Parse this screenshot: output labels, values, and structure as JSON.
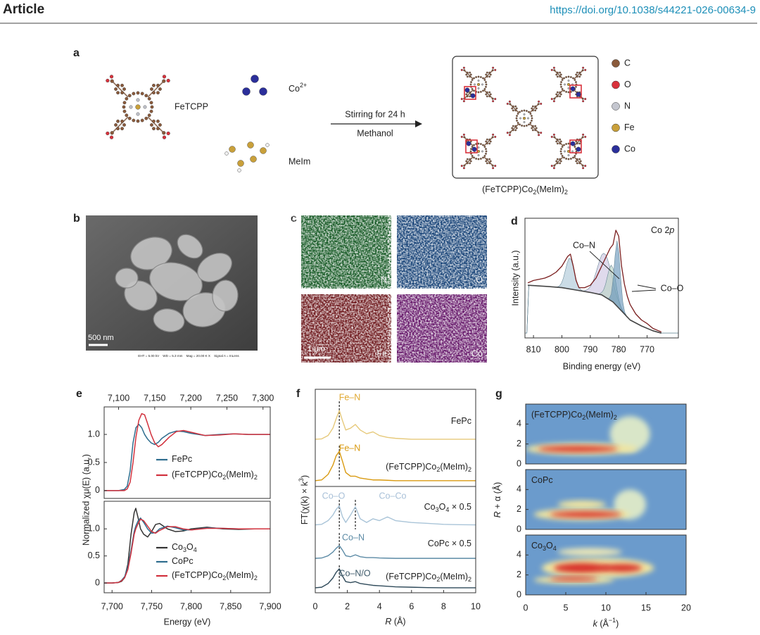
{
  "header": {
    "journal": "Article",
    "doi": "https://doi.org/10.1038/s44221-026-00634-9"
  },
  "panel_a": {
    "label": "a",
    "ligand": "FeTCPP",
    "metal": "Co2+",
    "linker": "MeIm",
    "step": "Stirring for 24 h",
    "solvent": "Methanol",
    "product": "(FeTCPP)Co2(MeIm)2",
    "legend": [
      {
        "label": "C",
        "color": "#8a5a3b"
      },
      {
        "label": "O",
        "color": "#d8323c"
      },
      {
        "label": "N",
        "color": "#c4c6cf"
      },
      {
        "label": "Fe",
        "color": "#c9a03a"
      },
      {
        "label": "Co",
        "color": "#2b2f9a"
      }
    ]
  },
  "panel_b": {
    "label": "b",
    "scale_bar": "500 nm",
    "footer": "EHT = 5.00 kV    WD = 5.3 mm    Mag = 20.00 K X    Signal A = InLens"
  },
  "panel_c": {
    "label": "c",
    "maps": [
      {
        "element": "N",
        "color": "#1f9a3a"
      },
      {
        "element": "O",
        "color": "#1f6fd0"
      },
      {
        "element": "Fe",
        "color": "#c0222a"
      },
      {
        "element": "Co",
        "color": "#b020b8"
      }
    ],
    "scale_bar": "1 µm"
  },
  "chart_data": [
    {
      "type": "line",
      "panel": "d",
      "annotation": "Co 2p",
      "labels": [
        "Co–N",
        "Co–O"
      ],
      "xlabel": "Binding energy (eV)",
      "ylabel": "Intensity (a.u.)",
      "xlim": [
        813,
        759
      ],
      "xticks": [
        810,
        800,
        790,
        780,
        770
      ],
      "ylim": [
        0,
        1
      ],
      "series": [
        {
          "color": "#7a1e1e",
          "x": [
            812,
            810,
            808,
            806,
            804,
            802,
            800,
            798,
            797,
            796,
            795,
            794,
            792,
            790,
            788,
            786,
            785,
            784,
            783,
            782,
            781,
            780,
            779,
            778,
            777,
            776,
            774,
            772,
            770,
            768,
            766,
            765
          ],
          "values": [
            0.46,
            0.48,
            0.49,
            0.5,
            0.52,
            0.55,
            0.6,
            0.68,
            0.7,
            0.6,
            0.48,
            0.42,
            0.42,
            0.44,
            0.5,
            0.6,
            0.65,
            0.7,
            0.75,
            0.78,
            0.9,
            0.85,
            0.6,
            0.45,
            0.35,
            0.28,
            0.2,
            0.15,
            0.12,
            0.08,
            0.06,
            0.05
          ]
        },
        {
          "color": "#444444",
          "x": [
            812,
            805,
            800,
            795,
            790,
            786,
            782,
            780,
            778,
            776,
            772,
            768,
            765
          ],
          "values": [
            0.44,
            0.43,
            0.42,
            0.4,
            0.38,
            0.36,
            0.3,
            0.25,
            0.2,
            0.15,
            0.1,
            0.06,
            0.04
          ]
        }
      ],
      "peaks": [
        {
          "center": 797.2,
          "height": 0.26,
          "width": 1.5,
          "color": "#a8c5d6"
        },
        {
          "center": 785,
          "height": 0.36,
          "width": 2.5,
          "color": "#c9c2e0"
        },
        {
          "center": 782.5,
          "height": 0.3,
          "width": 1.5,
          "color": "#b9d4c4"
        },
        {
          "center": 780.5,
          "height": 0.55,
          "width": 1,
          "color": "#5f8fb5"
        }
      ]
    },
    {
      "type": "line",
      "panel": "e",
      "xaxis": "top",
      "ylabel": "Normalized χμ(E) (a.u.)",
      "xlim": [
        7080,
        7310
      ],
      "xticks": [
        {
          "value": 7100,
          "label": "7,100"
        },
        {
          "value": 7150,
          "label": "7,150"
        },
        {
          "value": 7200,
          "label": "7,200"
        },
        {
          "value": 7250,
          "label": "7,250"
        },
        {
          "value": 7300,
          "label": "7,300"
        }
      ],
      "ylim": [
        -0.14,
        1.49
      ],
      "yticks": [
        0,
        0.5,
        {
          "value": 1,
          "label": "1.0"
        }
      ],
      "x": [
        7080,
        7100,
        7108,
        7112,
        7116,
        7120,
        7124,
        7128,
        7132,
        7136,
        7140,
        7145,
        7150,
        7155,
        7160,
        7170,
        7180,
        7190,
        7200,
        7220,
        7240,
        7260,
        7280,
        7310
      ],
      "series": [
        {
          "name": "FePc",
          "color": "#2e6d8e",
          "values": [
            0,
            0,
            0.02,
            0.08,
            0.35,
            0.85,
            1.12,
            1.18,
            1.12,
            1.0,
            0.92,
            0.85,
            0.82,
            0.86,
            0.93,
            1.02,
            1.06,
            1.05,
            1.02,
            0.98,
            1.0,
            1.01,
            1.0,
            1.0
          ]
        },
        {
          "name": "(FeTCPP)Co2(MeIm)2",
          "color": "#d1313d",
          "values": [
            0,
            0,
            0,
            0.03,
            0.15,
            0.5,
            0.95,
            1.25,
            1.37,
            1.35,
            1.2,
            1.0,
            0.85,
            0.78,
            0.82,
            0.95,
            1.05,
            1.07,
            1.04,
            0.98,
            0.99,
            1.01,
            1.0,
            1.0
          ]
        }
      ]
    },
    {
      "type": "line",
      "panel": "e",
      "xaxis": "bottom",
      "xlabel": "Energy (eV)",
      "xlim": [
        7690,
        7900
      ],
      "xticks": [
        {
          "value": 7700,
          "label": "7,700"
        },
        {
          "value": 7750,
          "label": "7,750"
        },
        {
          "value": 7800,
          "label": "7,800"
        },
        {
          "value": 7850,
          "label": "7,850"
        },
        {
          "value": 7900,
          "label": "7,900"
        }
      ],
      "ylim": [
        -0.18,
        1.51
      ],
      "yticks": [
        0,
        0.5,
        {
          "value": 1,
          "label": "1.0"
        }
      ],
      "x": [
        7690,
        7700,
        7708,
        7712,
        7716,
        7720,
        7724,
        7728,
        7730,
        7733,
        7736,
        7740,
        7745,
        7750,
        7755,
        7760,
        7770,
        7780,
        7790,
        7800,
        7820,
        7840,
        7860,
        7880,
        7900
      ],
      "series": [
        {
          "name": "Co3O4",
          "color": "#333333",
          "values": [
            0,
            0,
            0.01,
            0.03,
            0.1,
            0.35,
            0.9,
            1.3,
            1.38,
            1.2,
            1.0,
            0.9,
            0.85,
            0.95,
            1.08,
            1.1,
            1.0,
            0.95,
            0.96,
            1.0,
            1.03,
            1.0,
            0.99,
            1.0,
            1.0
          ]
        },
        {
          "name": "CoPc",
          "color": "#2e6d8e",
          "values": [
            0,
            0,
            0.01,
            0.05,
            0.12,
            0.3,
            0.6,
            0.95,
            1.05,
            1.15,
            1.2,
            1.12,
            1.0,
            0.92,
            0.93,
            1.0,
            1.05,
            1.02,
            0.98,
            0.98,
            1.02,
            1.01,
            1.0,
            1.0,
            1.0
          ]
        },
        {
          "name": "(FeTCPP)Co2(MeIm)2",
          "color": "#d1313d",
          "values": [
            0,
            0,
            0.01,
            0.04,
            0.1,
            0.25,
            0.55,
            0.9,
            1.0,
            1.1,
            1.18,
            1.15,
            1.05,
            0.95,
            0.92,
            0.97,
            1.04,
            1.04,
            1.0,
            0.98,
            1.01,
            1.01,
            1.0,
            1.0,
            1.0
          ]
        }
      ]
    },
    {
      "type": "line",
      "panel": "f",
      "xlabel": "R (Å)",
      "ylabel": "FT(χ(k) × k3)",
      "xlim": [
        0,
        10
      ],
      "xticks": [
        0,
        2,
        4,
        6,
        8,
        10
      ],
      "ylim": [
        0,
        11
      ],
      "dashed_R": [
        1.5,
        2.5
      ],
      "labels": [
        {
          "text": "Fe–N",
          "color": "#e0a830"
        },
        {
          "text": "Fe–N",
          "color": "#d99a10"
        },
        {
          "text": "Co–O",
          "color": "#a8c0d8"
        },
        {
          "text": "Co–Co",
          "color": "#a8c0d8"
        },
        {
          "text": "Co–N",
          "color": "#5b8aa5"
        },
        {
          "text": "Co–N/O",
          "color": "#3d5a6a"
        }
      ],
      "x": [
        0,
        0.4,
        0.8,
        1.1,
        1.3,
        1.5,
        1.7,
        1.9,
        2.2,
        2.5,
        2.8,
        3.2,
        3.6,
        4,
        4.5,
        5,
        6,
        7,
        8,
        9,
        10
      ],
      "series": [
        {
          "name": "FePc",
          "color": "#e6c97a",
          "values": [
            8.3,
            8.32,
            8.5,
            8.9,
            9.4,
            9.85,
            9.3,
            8.8,
            8.9,
            9.1,
            8.8,
            8.6,
            8.7,
            8.5,
            8.4,
            8.35,
            8.3,
            8.3,
            8.3,
            8.3,
            8.3
          ]
        },
        {
          "name": "(FeTCPP)Co2(MeIm)2",
          "color": "#d99a10",
          "values": [
            6.06,
            6.1,
            6.4,
            6.9,
            7.4,
            7.65,
            7.1,
            6.5,
            6.3,
            6.3,
            6.2,
            6.15,
            6.1,
            6.1,
            6.08,
            6.06,
            6.06,
            6.06,
            6.06,
            6.06,
            6.06
          ]
        },
        {
          "name": "Co3O4 × 0.5",
          "color": "#a9c4d8",
          "values": [
            3.67,
            3.7,
            3.9,
            4.2,
            4.5,
            4.7,
            4.1,
            3.8,
            4.2,
            4.65,
            4.0,
            3.8,
            4.0,
            3.9,
            4.1,
            3.9,
            3.8,
            3.75,
            3.7,
            3.68,
            3.67
          ]
        },
        {
          "name": "CoPc × 0.5",
          "color": "#5b8aa5",
          "values": [
            1.86,
            1.88,
            2.0,
            2.2,
            2.4,
            2.55,
            2.3,
            2.0,
            1.95,
            2.05,
            1.95,
            1.9,
            1.9,
            1.88,
            1.87,
            1.86,
            1.86,
            1.86,
            1.86,
            1.86,
            1.86
          ]
        },
        {
          "name": "(FeTCPP)Co2(MeIm)2",
          "color": "#2f4a5a",
          "values": [
            0.27,
            0.3,
            0.5,
            0.8,
            1.1,
            1.3,
            0.9,
            0.6,
            0.55,
            0.6,
            0.5,
            0.45,
            0.4,
            0.38,
            0.35,
            0.32,
            0.3,
            0.28,
            0.27,
            0.27,
            0.27
          ]
        }
      ]
    },
    {
      "type": "heatmap",
      "panel": "g",
      "xlabel": "k (Å−1)",
      "ylabel": "R + α (Å)",
      "xlim": [
        0,
        20
      ],
      "xticks": [
        0,
        5,
        10,
        15,
        20
      ],
      "ylim": [
        0,
        6
      ],
      "yticks": [
        0,
        2,
        4
      ],
      "background": "#6b9bcc",
      "panels": [
        {
          "name": "(FeTCPP)Co2(MeIm)2",
          "features": [
            {
              "k": 13,
              "R": 3,
              "dk": 2.5,
              "dR": 1.8,
              "color": "#d9e6c8"
            },
            {
              "k": 7,
              "R": 1.5,
              "dk": 7,
              "dR": 0.6,
              "color": "#f2e6a0"
            },
            {
              "k": 6.5,
              "R": 1.5,
              "dk": 5,
              "dR": 0.3,
              "color": "#d8322a"
            }
          ]
        },
        {
          "name": "CoPc",
          "features": [
            {
              "k": 13,
              "R": 2.5,
              "dk": 2,
              "dR": 1.5,
              "color": "#d9e6c8"
            },
            {
              "k": 7,
              "R": 2.5,
              "dk": 3,
              "dR": 0.4,
              "color": "#f2e6a0"
            },
            {
              "k": 7,
              "R": 1.5,
              "dk": 6,
              "dR": 0.6,
              "color": "#f2e6a0"
            },
            {
              "k": 7.5,
              "R": 1.5,
              "dk": 4.5,
              "dR": 0.3,
              "color": "#d8322a"
            }
          ]
        },
        {
          "name": "Co3O4",
          "features": [
            {
              "k": 8,
              "R": 4.3,
              "dk": 4,
              "dR": 0.4,
              "color": "#eae6b8"
            },
            {
              "k": 9,
              "R": 2.7,
              "dk": 7,
              "dR": 1.0,
              "color": "#f2e6a0"
            },
            {
              "k": 6,
              "R": 1.5,
              "dk": 5,
              "dR": 0.4,
              "color": "#f2e6a0"
            },
            {
              "k": 7,
              "R": 2.7,
              "dk": 3.5,
              "dR": 0.5,
              "color": "#d8322a"
            },
            {
              "k": 12,
              "R": 2.7,
              "dk": 2.5,
              "dR": 0.4,
              "color": "#d8322a"
            },
            {
              "k": 6,
              "R": 1.6,
              "dk": 3,
              "dR": 0.2,
              "color": "#d8322a"
            }
          ]
        }
      ]
    }
  ]
}
